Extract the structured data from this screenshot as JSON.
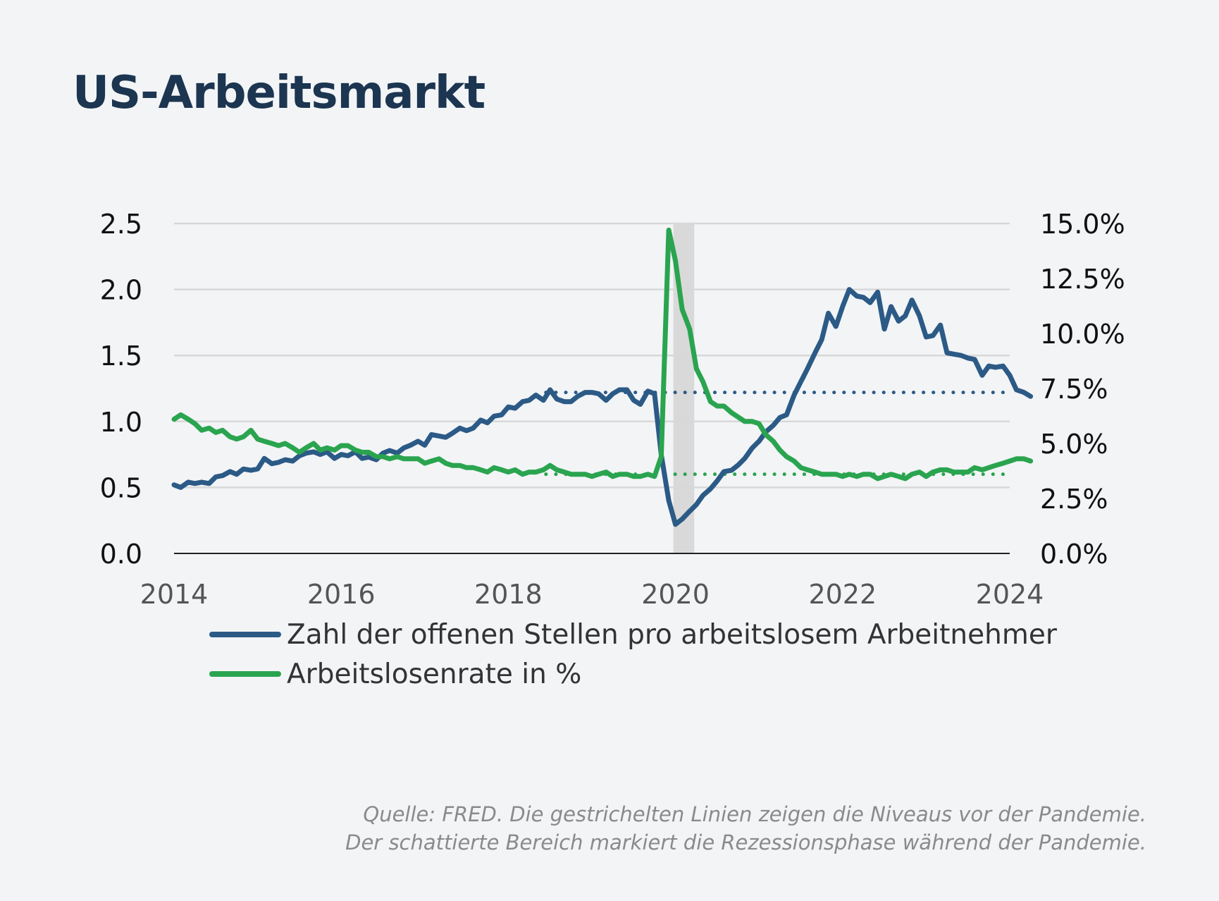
{
  "title": "US-Arbeitsmarkt",
  "source": {
    "line1": "Quelle: FRED. Die gestrichelten Linien zeigen die Niveaus vor der Pandemie.",
    "line2": "Der schattierte Bereich markiert die Rezessionsphase während der Pandemie."
  },
  "colors": {
    "vacancies": "#2c5a86",
    "unemployment": "#2aa44f",
    "recession": "#d9d9d9",
    "grid": "#d8d8d8",
    "axis": "#222222"
  },
  "chart_data": {
    "type": "line",
    "title": "US-Arbeitsmarkt",
    "x_range": [
      2014,
      2024
    ],
    "x_ticks": [
      "2014",
      "2016",
      "2018",
      "2020",
      "2022",
      "2024"
    ],
    "y_left": {
      "range": [
        0,
        2.5
      ],
      "ticks": [
        "0.0",
        "0.5",
        "1.0",
        "1.5",
        "2.0",
        "2.5"
      ]
    },
    "y_right": {
      "range": [
        0,
        15
      ],
      "ticks": [
        "0.0%",
        "2.5%",
        "5.0%",
        "7.5%",
        "10.0%",
        "12.5%",
        "15.0%"
      ]
    },
    "recession_band": [
      2020.0,
      2020.25
    ],
    "reference_lines": [
      {
        "series": "vacancies",
        "axis": "left",
        "value": 1.22,
        "from_x": 2018.45,
        "to_x": 2024.0,
        "style": "dotted"
      },
      {
        "series": "unemployment",
        "axis": "right",
        "value": 3.6,
        "from_x": 2018.45,
        "to_x": 2024.0,
        "style": "dotted"
      }
    ],
    "series": [
      {
        "name": "Zahl der offenen Stellen pro arbeitslosem Arbeitnehmer",
        "key": "vacancies",
        "axis": "left",
        "points": [
          [
            2014.0,
            0.52
          ],
          [
            2014.08,
            0.5
          ],
          [
            2014.17,
            0.54
          ],
          [
            2014.25,
            0.53
          ],
          [
            2014.33,
            0.54
          ],
          [
            2014.42,
            0.53
          ],
          [
            2014.5,
            0.58
          ],
          [
            2014.58,
            0.59
          ],
          [
            2014.67,
            0.62
          ],
          [
            2014.75,
            0.6
          ],
          [
            2014.83,
            0.64
          ],
          [
            2014.92,
            0.63
          ],
          [
            2015.0,
            0.64
          ],
          [
            2015.08,
            0.72
          ],
          [
            2015.17,
            0.68
          ],
          [
            2015.25,
            0.69
          ],
          [
            2015.33,
            0.71
          ],
          [
            2015.42,
            0.7
          ],
          [
            2015.5,
            0.74
          ],
          [
            2015.58,
            0.76
          ],
          [
            2015.67,
            0.77
          ],
          [
            2015.75,
            0.75
          ],
          [
            2015.83,
            0.77
          ],
          [
            2015.92,
            0.72
          ],
          [
            2016.0,
            0.75
          ],
          [
            2016.08,
            0.74
          ],
          [
            2016.17,
            0.77
          ],
          [
            2016.25,
            0.72
          ],
          [
            2016.33,
            0.73
          ],
          [
            2016.42,
            0.71
          ],
          [
            2016.5,
            0.76
          ],
          [
            2016.58,
            0.78
          ],
          [
            2016.67,
            0.76
          ],
          [
            2016.75,
            0.8
          ],
          [
            2016.83,
            0.82
          ],
          [
            2016.92,
            0.85
          ],
          [
            2017.0,
            0.82
          ],
          [
            2017.08,
            0.9
          ],
          [
            2017.17,
            0.89
          ],
          [
            2017.25,
            0.88
          ],
          [
            2017.33,
            0.91
          ],
          [
            2017.42,
            0.95
          ],
          [
            2017.5,
            0.93
          ],
          [
            2017.58,
            0.95
          ],
          [
            2017.67,
            1.01
          ],
          [
            2017.75,
            0.99
          ],
          [
            2017.83,
            1.04
          ],
          [
            2017.92,
            1.05
          ],
          [
            2018.0,
            1.11
          ],
          [
            2018.08,
            1.1
          ],
          [
            2018.17,
            1.15
          ],
          [
            2018.25,
            1.16
          ],
          [
            2018.33,
            1.2
          ],
          [
            2018.42,
            1.16
          ],
          [
            2018.5,
            1.24
          ],
          [
            2018.58,
            1.17
          ],
          [
            2018.67,
            1.15
          ],
          [
            2018.75,
            1.15
          ],
          [
            2018.83,
            1.19
          ],
          [
            2018.92,
            1.22
          ],
          [
            2019.0,
            1.22
          ],
          [
            2019.08,
            1.21
          ],
          [
            2019.17,
            1.16
          ],
          [
            2019.25,
            1.21
          ],
          [
            2019.33,
            1.24
          ],
          [
            2019.42,
            1.24
          ],
          [
            2019.5,
            1.16
          ],
          [
            2019.58,
            1.13
          ],
          [
            2019.67,
            1.23
          ],
          [
            2019.75,
            1.21
          ],
          [
            2019.83,
            0.75
          ],
          [
            2019.92,
            0.4
          ],
          [
            2020.0,
            0.22
          ],
          [
            2020.08,
            0.26
          ],
          [
            2020.17,
            0.32
          ],
          [
            2020.25,
            0.37
          ],
          [
            2020.33,
            0.44
          ],
          [
            2020.42,
            0.49
          ],
          [
            2020.5,
            0.55
          ],
          [
            2020.58,
            0.62
          ],
          [
            2020.67,
            0.63
          ],
          [
            2020.75,
            0.67
          ],
          [
            2020.83,
            0.72
          ],
          [
            2020.92,
            0.8
          ],
          [
            2021.0,
            0.85
          ],
          [
            2021.08,
            0.92
          ],
          [
            2021.17,
            0.97
          ],
          [
            2021.25,
            1.03
          ],
          [
            2021.33,
            1.05
          ],
          [
            2021.42,
            1.2
          ],
          [
            2021.5,
            1.3
          ],
          [
            2021.58,
            1.4
          ],
          [
            2021.67,
            1.52
          ],
          [
            2021.75,
            1.62
          ],
          [
            2021.83,
            1.82
          ],
          [
            2021.92,
            1.72
          ],
          [
            2022.0,
            1.87
          ],
          [
            2022.08,
            2.0
          ],
          [
            2022.17,
            1.95
          ],
          [
            2022.25,
            1.94
          ],
          [
            2022.33,
            1.9
          ],
          [
            2022.42,
            1.98
          ],
          [
            2022.5,
            1.7
          ],
          [
            2022.58,
            1.87
          ],
          [
            2022.67,
            1.76
          ],
          [
            2022.75,
            1.8
          ],
          [
            2022.83,
            1.92
          ],
          [
            2022.92,
            1.8
          ],
          [
            2023.0,
            1.64
          ],
          [
            2023.08,
            1.65
          ],
          [
            2023.17,
            1.73
          ],
          [
            2023.25,
            1.52
          ],
          [
            2023.33,
            1.51
          ],
          [
            2023.42,
            1.5
          ],
          [
            2023.5,
            1.48
          ],
          [
            2023.58,
            1.47
          ],
          [
            2023.67,
            1.35
          ],
          [
            2023.75,
            1.42
          ],
          [
            2023.83,
            1.41
          ],
          [
            2023.92,
            1.42
          ],
          [
            2024.0,
            1.35
          ],
          [
            2024.08,
            1.24
          ],
          [
            2024.17,
            1.22
          ],
          [
            2024.25,
            1.19
          ]
        ]
      },
      {
        "name": "Arbeitslosenrate in %",
        "key": "unemployment",
        "axis": "right",
        "points": [
          [
            2014.0,
            6.1
          ],
          [
            2014.08,
            6.3
          ],
          [
            2014.17,
            6.1
          ],
          [
            2014.25,
            5.9
          ],
          [
            2014.33,
            5.6
          ],
          [
            2014.42,
            5.7
          ],
          [
            2014.5,
            5.5
          ],
          [
            2014.58,
            5.6
          ],
          [
            2014.67,
            5.3
          ],
          [
            2014.75,
            5.2
          ],
          [
            2014.83,
            5.3
          ],
          [
            2014.92,
            5.6
          ],
          [
            2015.0,
            5.2
          ],
          [
            2015.08,
            5.1
          ],
          [
            2015.17,
            5.0
          ],
          [
            2015.25,
            4.9
          ],
          [
            2015.33,
            5.0
          ],
          [
            2015.42,
            4.8
          ],
          [
            2015.5,
            4.6
          ],
          [
            2015.58,
            4.8
          ],
          [
            2015.67,
            5.0
          ],
          [
            2015.75,
            4.7
          ],
          [
            2015.83,
            4.8
          ],
          [
            2015.92,
            4.7
          ],
          [
            2016.0,
            4.9
          ],
          [
            2016.08,
            4.9
          ],
          [
            2016.17,
            4.7
          ],
          [
            2016.25,
            4.6
          ],
          [
            2016.33,
            4.6
          ],
          [
            2016.42,
            4.4
          ],
          [
            2016.5,
            4.4
          ],
          [
            2016.58,
            4.3
          ],
          [
            2016.67,
            4.4
          ],
          [
            2016.75,
            4.3
          ],
          [
            2016.83,
            4.3
          ],
          [
            2016.92,
            4.3
          ],
          [
            2017.0,
            4.1
          ],
          [
            2017.08,
            4.2
          ],
          [
            2017.17,
            4.3
          ],
          [
            2017.25,
            4.1
          ],
          [
            2017.33,
            4.0
          ],
          [
            2017.42,
            4.0
          ],
          [
            2017.5,
            3.9
          ],
          [
            2017.58,
            3.9
          ],
          [
            2017.67,
            3.8
          ],
          [
            2017.75,
            3.7
          ],
          [
            2017.83,
            3.9
          ],
          [
            2017.92,
            3.8
          ],
          [
            2018.0,
            3.7
          ],
          [
            2018.08,
            3.8
          ],
          [
            2018.17,
            3.6
          ],
          [
            2018.25,
            3.7
          ],
          [
            2018.33,
            3.7
          ],
          [
            2018.42,
            3.8
          ],
          [
            2018.5,
            4.0
          ],
          [
            2018.58,
            3.8
          ],
          [
            2018.67,
            3.7
          ],
          [
            2018.75,
            3.6
          ],
          [
            2018.83,
            3.6
          ],
          [
            2018.92,
            3.6
          ],
          [
            2019.0,
            3.5
          ],
          [
            2019.08,
            3.6
          ],
          [
            2019.17,
            3.7
          ],
          [
            2019.25,
            3.5
          ],
          [
            2019.33,
            3.6
          ],
          [
            2019.42,
            3.6
          ],
          [
            2019.5,
            3.5
          ],
          [
            2019.58,
            3.5
          ],
          [
            2019.67,
            3.6
          ],
          [
            2019.75,
            3.5
          ],
          [
            2019.83,
            4.4
          ],
          [
            2019.92,
            14.7
          ],
          [
            2020.0,
            13.3
          ],
          [
            2020.08,
            11.1
          ],
          [
            2020.17,
            10.2
          ],
          [
            2020.25,
            8.4
          ],
          [
            2020.33,
            7.8
          ],
          [
            2020.42,
            6.9
          ],
          [
            2020.5,
            6.7
          ],
          [
            2020.58,
            6.7
          ],
          [
            2020.67,
            6.4
          ],
          [
            2020.75,
            6.2
          ],
          [
            2020.83,
            6.0
          ],
          [
            2020.92,
            6.0
          ],
          [
            2021.0,
            5.9
          ],
          [
            2021.08,
            5.4
          ],
          [
            2021.17,
            5.1
          ],
          [
            2021.25,
            4.7
          ],
          [
            2021.33,
            4.4
          ],
          [
            2021.42,
            4.2
          ],
          [
            2021.5,
            3.9
          ],
          [
            2021.58,
            3.8
          ],
          [
            2021.67,
            3.7
          ],
          [
            2021.75,
            3.6
          ],
          [
            2021.83,
            3.6
          ],
          [
            2021.92,
            3.6
          ],
          [
            2022.0,
            3.5
          ],
          [
            2022.08,
            3.6
          ],
          [
            2022.17,
            3.5
          ],
          [
            2022.25,
            3.6
          ],
          [
            2022.33,
            3.6
          ],
          [
            2022.42,
            3.4
          ],
          [
            2022.5,
            3.5
          ],
          [
            2022.58,
            3.6
          ],
          [
            2022.67,
            3.5
          ],
          [
            2022.75,
            3.4
          ],
          [
            2022.83,
            3.6
          ],
          [
            2022.92,
            3.7
          ],
          [
            2023.0,
            3.5
          ],
          [
            2023.08,
            3.7
          ],
          [
            2023.17,
            3.8
          ],
          [
            2023.25,
            3.8
          ],
          [
            2023.33,
            3.7
          ],
          [
            2023.42,
            3.7
          ],
          [
            2023.5,
            3.7
          ],
          [
            2023.58,
            3.9
          ],
          [
            2023.67,
            3.8
          ],
          [
            2023.75,
            3.9
          ],
          [
            2023.83,
            4.0
          ],
          [
            2023.92,
            4.1
          ],
          [
            2024.0,
            4.2
          ],
          [
            2024.08,
            4.3
          ],
          [
            2024.17,
            4.3
          ],
          [
            2024.25,
            4.2
          ]
        ]
      }
    ],
    "legend": "bottom-left"
  }
}
